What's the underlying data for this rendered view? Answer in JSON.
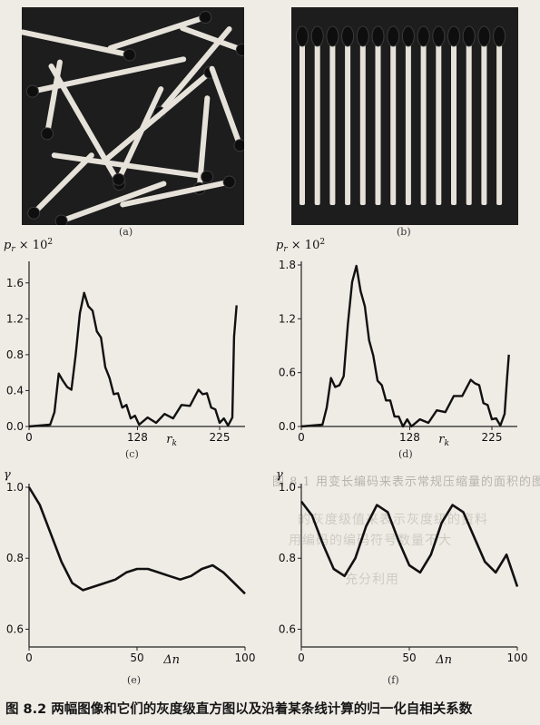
{
  "panels": {
    "a": "(a)",
    "b": "(b)",
    "c": "(c)",
    "d": "(d)",
    "e": "(e)",
    "f": "(f)"
  },
  "caption": "图 8.2   两幅图像和它们的灰度级直方图以及沿着某条线计算的归一化自相关系数",
  "colors": {
    "background": "#efece6",
    "ink": "#151515",
    "photo_bg": "#1d1d1d",
    "match_stick": "#e6e2da",
    "match_head": "#0e0e0e"
  },
  "chart_data": [
    {
      "id": "c",
      "type": "line",
      "ylabel": "p_r × 10^2",
      "xlabel": "r_k",
      "xlim": [
        0,
        255
      ],
      "ylim": [
        0,
        1.8
      ],
      "xticks": [
        0,
        128,
        225
      ],
      "xtick_labels": [
        "0",
        "128",
        "225"
      ],
      "yticks": [
        0.0,
        0.4,
        0.8,
        1.2,
        1.6
      ],
      "ytick_labels": [
        "0.0",
        "0.4",
        "0.8",
        "1.2",
        "1.6"
      ],
      "x": [
        0,
        25,
        30,
        35,
        40,
        45,
        50,
        55,
        60,
        65,
        70,
        75,
        80,
        85,
        90,
        95,
        100,
        105,
        110,
        115,
        120,
        125,
        130,
        140,
        150,
        160,
        170,
        180,
        190,
        200,
        205,
        210,
        215,
        220,
        225,
        230,
        235,
        240,
        242,
        245
      ],
      "y": [
        0,
        0.02,
        0.2,
        0.55,
        0.55,
        0.4,
        0.45,
        0.75,
        1.3,
        1.45,
        1.38,
        1.25,
        1.1,
        0.95,
        0.7,
        0.5,
        0.4,
        0.33,
        0.25,
        0.2,
        0.13,
        0.08,
        0.06,
        0.06,
        0.08,
        0.1,
        0.13,
        0.2,
        0.27,
        0.37,
        0.4,
        0.33,
        0.25,
        0.15,
        0.08,
        0.05,
        0.05,
        0.06,
        1.0,
        1.35
      ]
    },
    {
      "id": "d",
      "type": "line",
      "ylabel": "p_r × 10^2",
      "xlabel": "r_k",
      "xlim": [
        0,
        255
      ],
      "ylim": [
        0,
        1.8
      ],
      "xticks": [
        0,
        128,
        225
      ],
      "xtick_labels": [
        "0",
        "128",
        "225"
      ],
      "yticks": [
        0.0,
        0.6,
        1.2,
        1.8
      ],
      "ytick_labels": [
        "0.0",
        "0.6",
        "1.2",
        "1.8"
      ],
      "x": [
        0,
        25,
        30,
        35,
        40,
        45,
        50,
        55,
        60,
        65,
        70,
        75,
        80,
        85,
        90,
        95,
        100,
        105,
        110,
        115,
        120,
        125,
        130,
        140,
        150,
        160,
        170,
        180,
        190,
        200,
        205,
        210,
        215,
        220,
        225,
        230,
        235,
        240,
        243,
        245
      ],
      "y": [
        0,
        0.02,
        0.25,
        0.5,
        0.48,
        0.42,
        0.6,
        1.1,
        1.65,
        1.75,
        1.55,
        1.3,
        1.0,
        0.75,
        0.55,
        0.42,
        0.33,
        0.25,
        0.15,
        0.07,
        0.04,
        0.04,
        0.04,
        0.04,
        0.08,
        0.14,
        0.2,
        0.3,
        0.38,
        0.48,
        0.52,
        0.42,
        0.3,
        0.2,
        0.12,
        0.05,
        0.05,
        0.1,
        0.55,
        0.8
      ]
    },
    {
      "id": "e",
      "type": "line",
      "ylabel": "γ",
      "xlabel": "Δn",
      "xlim": [
        0,
        100
      ],
      "ylim": [
        0.55,
        1.0
      ],
      "xticks": [
        0,
        50,
        100
      ],
      "xtick_labels": [
        "0",
        "50",
        "100"
      ],
      "yticks": [
        0.6,
        0.8,
        1.0
      ],
      "ytick_labels": [
        "0.6",
        "0.8",
        "1.0"
      ],
      "x": [
        0,
        5,
        10,
        15,
        20,
        25,
        30,
        35,
        40,
        45,
        50,
        55,
        60,
        65,
        70,
        75,
        80,
        85,
        90,
        95,
        100
      ],
      "y": [
        1.0,
        0.95,
        0.87,
        0.79,
        0.73,
        0.71,
        0.72,
        0.73,
        0.74,
        0.76,
        0.77,
        0.77,
        0.76,
        0.75,
        0.74,
        0.75,
        0.77,
        0.78,
        0.76,
        0.73,
        0.7
      ]
    },
    {
      "id": "f",
      "type": "line",
      "ylabel": "γ",
      "xlabel": "Δn",
      "xlim": [
        0,
        100
      ],
      "ylim": [
        0.55,
        1.0
      ],
      "xticks": [
        0,
        50,
        100
      ],
      "xtick_labels": [
        "0",
        "50",
        "100"
      ],
      "yticks": [
        0.6,
        0.8,
        1.0
      ],
      "ytick_labels": [
        "0.6",
        "0.8",
        "1.0"
      ],
      "x": [
        0,
        5,
        10,
        15,
        20,
        25,
        30,
        35,
        40,
        45,
        50,
        55,
        60,
        65,
        70,
        75,
        80,
        85,
        90,
        95,
        100
      ],
      "y": [
        0.96,
        0.92,
        0.84,
        0.77,
        0.75,
        0.8,
        0.89,
        0.95,
        0.93,
        0.85,
        0.78,
        0.76,
        0.81,
        0.9,
        0.95,
        0.93,
        0.86,
        0.79,
        0.76,
        0.81,
        0.72
      ]
    }
  ]
}
